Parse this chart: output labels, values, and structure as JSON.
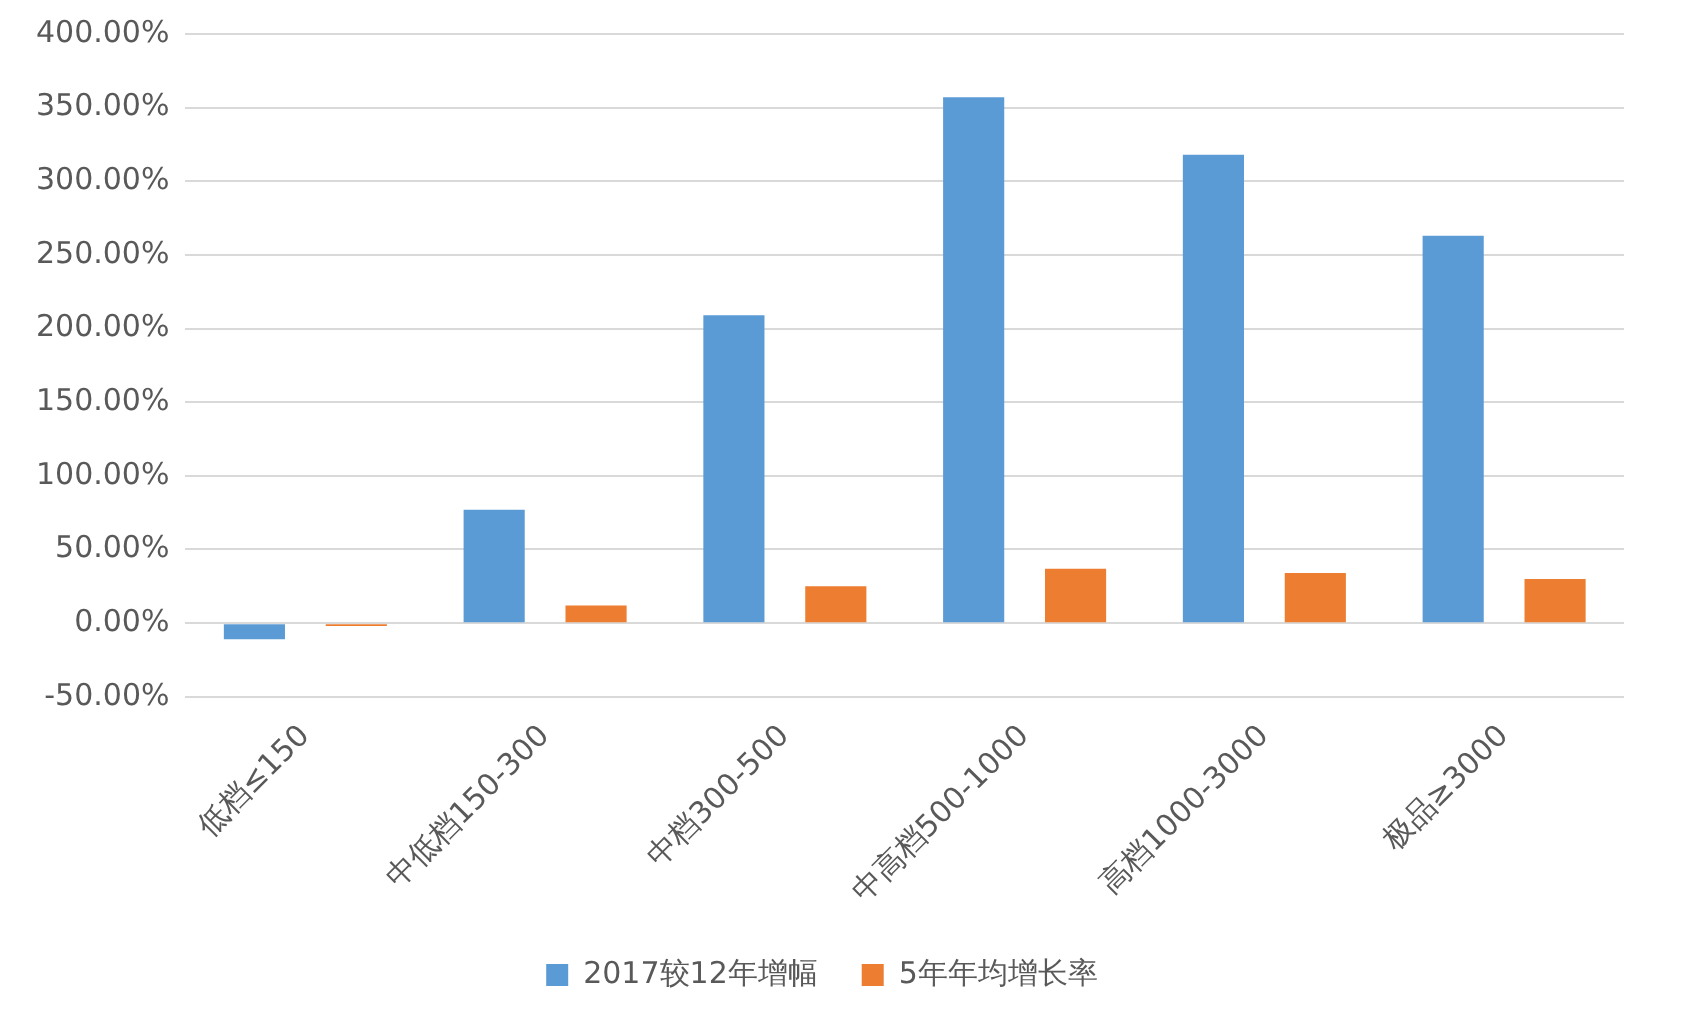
{
  "chart_data": {
    "type": "bar",
    "categories": [
      "低档≤150",
      "中低档150-300",
      "中档300-500",
      "中高档500-1000",
      "高档1000-3000",
      "极品≥3000"
    ],
    "series": [
      {
        "name": "2017较12年增幅",
        "color": "#5b9bd5",
        "values": [
          -11,
          77,
          209,
          357,
          318,
          263
        ]
      },
      {
        "name": "5年年均增长率",
        "color": "#ed7d31",
        "values": [
          -2,
          12,
          25,
          37,
          34,
          30
        ]
      }
    ],
    "ylim": [
      -50,
      400
    ],
    "yticks": [
      {
        "value": -50,
        "label": "-50.00%"
      },
      {
        "value": 0,
        "label": "0.00%"
      },
      {
        "value": 50,
        "label": "50.00%"
      },
      {
        "value": 100,
        "label": "100.00%"
      },
      {
        "value": 150,
        "label": "150.00%"
      },
      {
        "value": 200,
        "label": "200.00%"
      },
      {
        "value": 250,
        "label": "250.00%"
      },
      {
        "value": 300,
        "label": "300.00%"
      },
      {
        "value": 350,
        "label": "350.00%"
      },
      {
        "value": 400,
        "label": "400.00%"
      }
    ],
    "grid": "y",
    "legend": "bottom"
  }
}
